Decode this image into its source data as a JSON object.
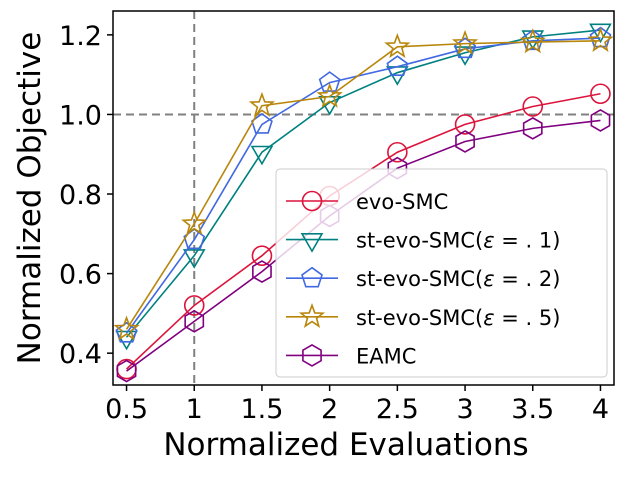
{
  "chart_data": {
    "type": "line",
    "xlabel": "Normalized Evaluations",
    "ylabel": "Normalized Objective",
    "xlim": [
      0.4,
      4.1
    ],
    "ylim": [
      0.32,
      1.26
    ],
    "x": [
      0.5,
      1,
      1.5,
      2,
      2.5,
      3,
      3.5,
      4
    ],
    "xticks": [
      0.5,
      1,
      1.5,
      2,
      2.5,
      3,
      3.5,
      4
    ],
    "xtick_labels": [
      "0.5",
      "1",
      "1.5",
      "2",
      "2.5",
      "3",
      "3.5",
      "4"
    ],
    "yticks": [
      0.4,
      0.6,
      0.8,
      1.0,
      1.2
    ],
    "ytick_labels": [
      "0.4",
      "0.6",
      "0.8",
      "1.0",
      "1.2"
    ],
    "reference_lines": {
      "x": 1,
      "y": 1.0
    },
    "grid": false,
    "legend_position": "lower-right",
    "series": [
      {
        "name": "evo-SMC",
        "label": "evo-SMC",
        "marker": "circle",
        "color": "#dc143c",
        "values": [
          0.36,
          0.52,
          0.645,
          0.795,
          0.905,
          0.975,
          1.02,
          1.052
        ]
      },
      {
        "name": "st-evo-SMC(ε=.1)",
        "label": "st-evo-SMC(",
        "eps": "ε",
        "eq": " = . 1)",
        "marker": "triangle-down",
        "color": "#008080",
        "values": [
          0.44,
          0.645,
          0.905,
          1.03,
          1.105,
          1.155,
          1.195,
          1.212
        ]
      },
      {
        "name": "st-evo-SMC(ε=.2)",
        "label": "st-evo-SMC(",
        "eps": "ε",
        "eq": " = . 2)",
        "marker": "pentagon",
        "color": "#4169e1",
        "values": [
          0.45,
          0.685,
          0.975,
          1.08,
          1.12,
          1.165,
          1.185,
          1.192
        ]
      },
      {
        "name": "st-evo-SMC(ε=.5)",
        "label": "st-evo-SMC(",
        "eps": "ε",
        "eq": " = . 5)",
        "marker": "star",
        "color": "#b8860b",
        "values": [
          0.46,
          0.725,
          1.022,
          1.045,
          1.17,
          1.178,
          1.182,
          1.185
        ]
      },
      {
        "name": "EAMC",
        "label": "EAMC",
        "marker": "hexagon",
        "color": "#800080",
        "values": [
          0.355,
          0.48,
          0.605,
          0.745,
          0.865,
          0.932,
          0.965,
          0.985
        ]
      }
    ]
  }
}
